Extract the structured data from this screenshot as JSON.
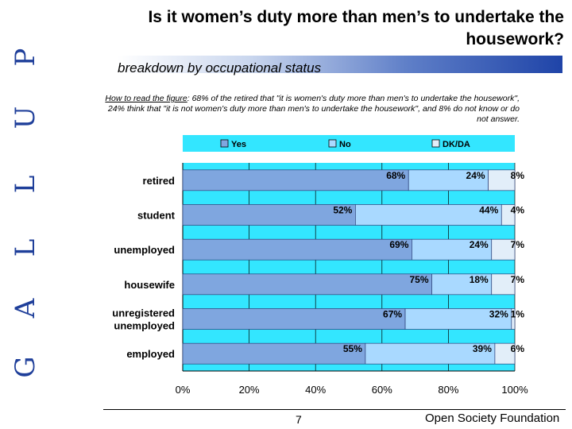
{
  "brand": {
    "letters": [
      "P",
      "U",
      "L",
      "L",
      "A",
      "G"
    ],
    "reading": "GALLUP"
  },
  "title": "Is it women’s duty more than men’s to undertake the housework?",
  "subtitle": "breakdown by occupational status",
  "note": {
    "lead": "How to read the figure",
    "text": ": 68% of the retired that \"it is women's duty more than men's to undertake the housework\", 24% think that \"it is not women's duty more than men's to undertake the housework\", and 8% do not know or do not answer."
  },
  "colors": {
    "accent_blue": "#1f44a8",
    "plot_bg": "#33e6ff",
    "legend_bg": "#33e6ff",
    "yes_bar": "#7fa6df",
    "no_bar": "#a9d9ff",
    "dkda_bar": "#e2eef9",
    "brand_letters": "#1f3f9a"
  },
  "chart_data": {
    "type": "bar",
    "orientation": "horizontal",
    "stacked": true,
    "categories": [
      "retired",
      "student",
      "unemployed",
      "housewife",
      "unregistered unemployed",
      "employed"
    ],
    "series": [
      {
        "name": "Yes",
        "values": [
          68,
          52,
          69,
          75,
          67,
          55
        ],
        "labels": [
          "68%",
          "52%",
          "69%",
          "75%",
          "67%",
          "55%"
        ]
      },
      {
        "name": "No",
        "values": [
          24,
          44,
          24,
          18,
          32,
          39
        ],
        "labels": [
          "24%",
          "44%",
          "24%",
          "18%",
          "32%",
          "39%"
        ]
      },
      {
        "name": "DK/DA",
        "values": [
          8,
          4,
          7,
          7,
          1,
          6
        ],
        "labels": [
          "8%",
          "4%",
          "7%",
          "7%",
          "1%",
          "6%"
        ]
      }
    ],
    "x_ticks": [
      "0%",
      "20%",
      "40%",
      "60%",
      "80%",
      "100%"
    ],
    "xlim": [
      0,
      100
    ],
    "grid": true,
    "legend_position": "top"
  },
  "footer": {
    "page": "7",
    "organization": "Open Society Foundation"
  }
}
